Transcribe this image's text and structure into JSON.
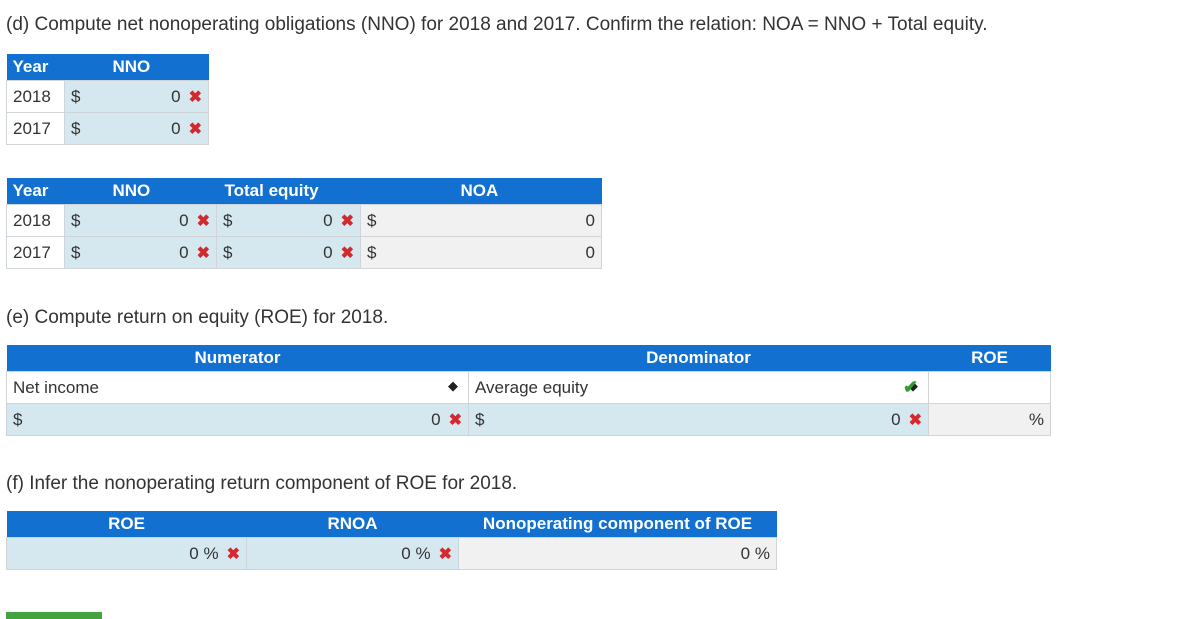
{
  "part_d": {
    "question": "(d) Compute net nonoperating obligations (NNO) for 2018 and 2017. Confirm the relation: NOA = NNO + Total equity.",
    "table1": {
      "headers": [
        "Year",
        "NNO"
      ],
      "rows": [
        {
          "year": "2018",
          "currency": "$",
          "value": "0",
          "mark": "✖"
        },
        {
          "year": "2017",
          "currency": "$",
          "value": "0",
          "mark": "✖"
        }
      ]
    },
    "table2": {
      "headers": [
        "Year",
        "NNO",
        "Total equity",
        "NOA"
      ],
      "rows": [
        {
          "year": "2018",
          "c1": "$",
          "nno": "0",
          "m1": "✖",
          "c2": "$",
          "equity": "0",
          "m2": "✖",
          "c3": "$",
          "noa": "0"
        },
        {
          "year": "2017",
          "c1": "$",
          "nno": "0",
          "m1": "✖",
          "c2": "$",
          "equity": "0",
          "m2": "✖",
          "c3": "$",
          "noa": "0"
        }
      ]
    }
  },
  "part_e": {
    "question": "(e) Compute return on equity (ROE) for 2018.",
    "headers": [
      "Numerator",
      "Denominator",
      "ROE"
    ],
    "numerator_select": "Net income",
    "denominator_select": "Average equity",
    "numerator_currency": "$",
    "numerator_value": "0",
    "numerator_mark": "✖",
    "denominator_currency": "$",
    "denominator_value": "0",
    "denominator_mark": "✖",
    "check_mark": "✔",
    "roe_unit": "%",
    "dropdown_glyph": "◆"
  },
  "part_f": {
    "question": "(f) Infer the nonoperating return component of ROE for 2018.",
    "headers": [
      "ROE",
      "RNOA",
      "Nonoperating component of ROE"
    ],
    "roe_value": "0",
    "roe_unit": "%",
    "roe_mark": "✖",
    "rnoa_value": "0",
    "rnoa_unit": "%",
    "rnoa_mark": "✖",
    "nonop_value": "0",
    "nonop_unit": "%"
  },
  "colors": {
    "header_blue": "#1170d0",
    "cell_blue": "#d5e8f0",
    "error_red": "#d3282f",
    "check_green": "#2fa02f",
    "bar_green": "#43a43f"
  }
}
